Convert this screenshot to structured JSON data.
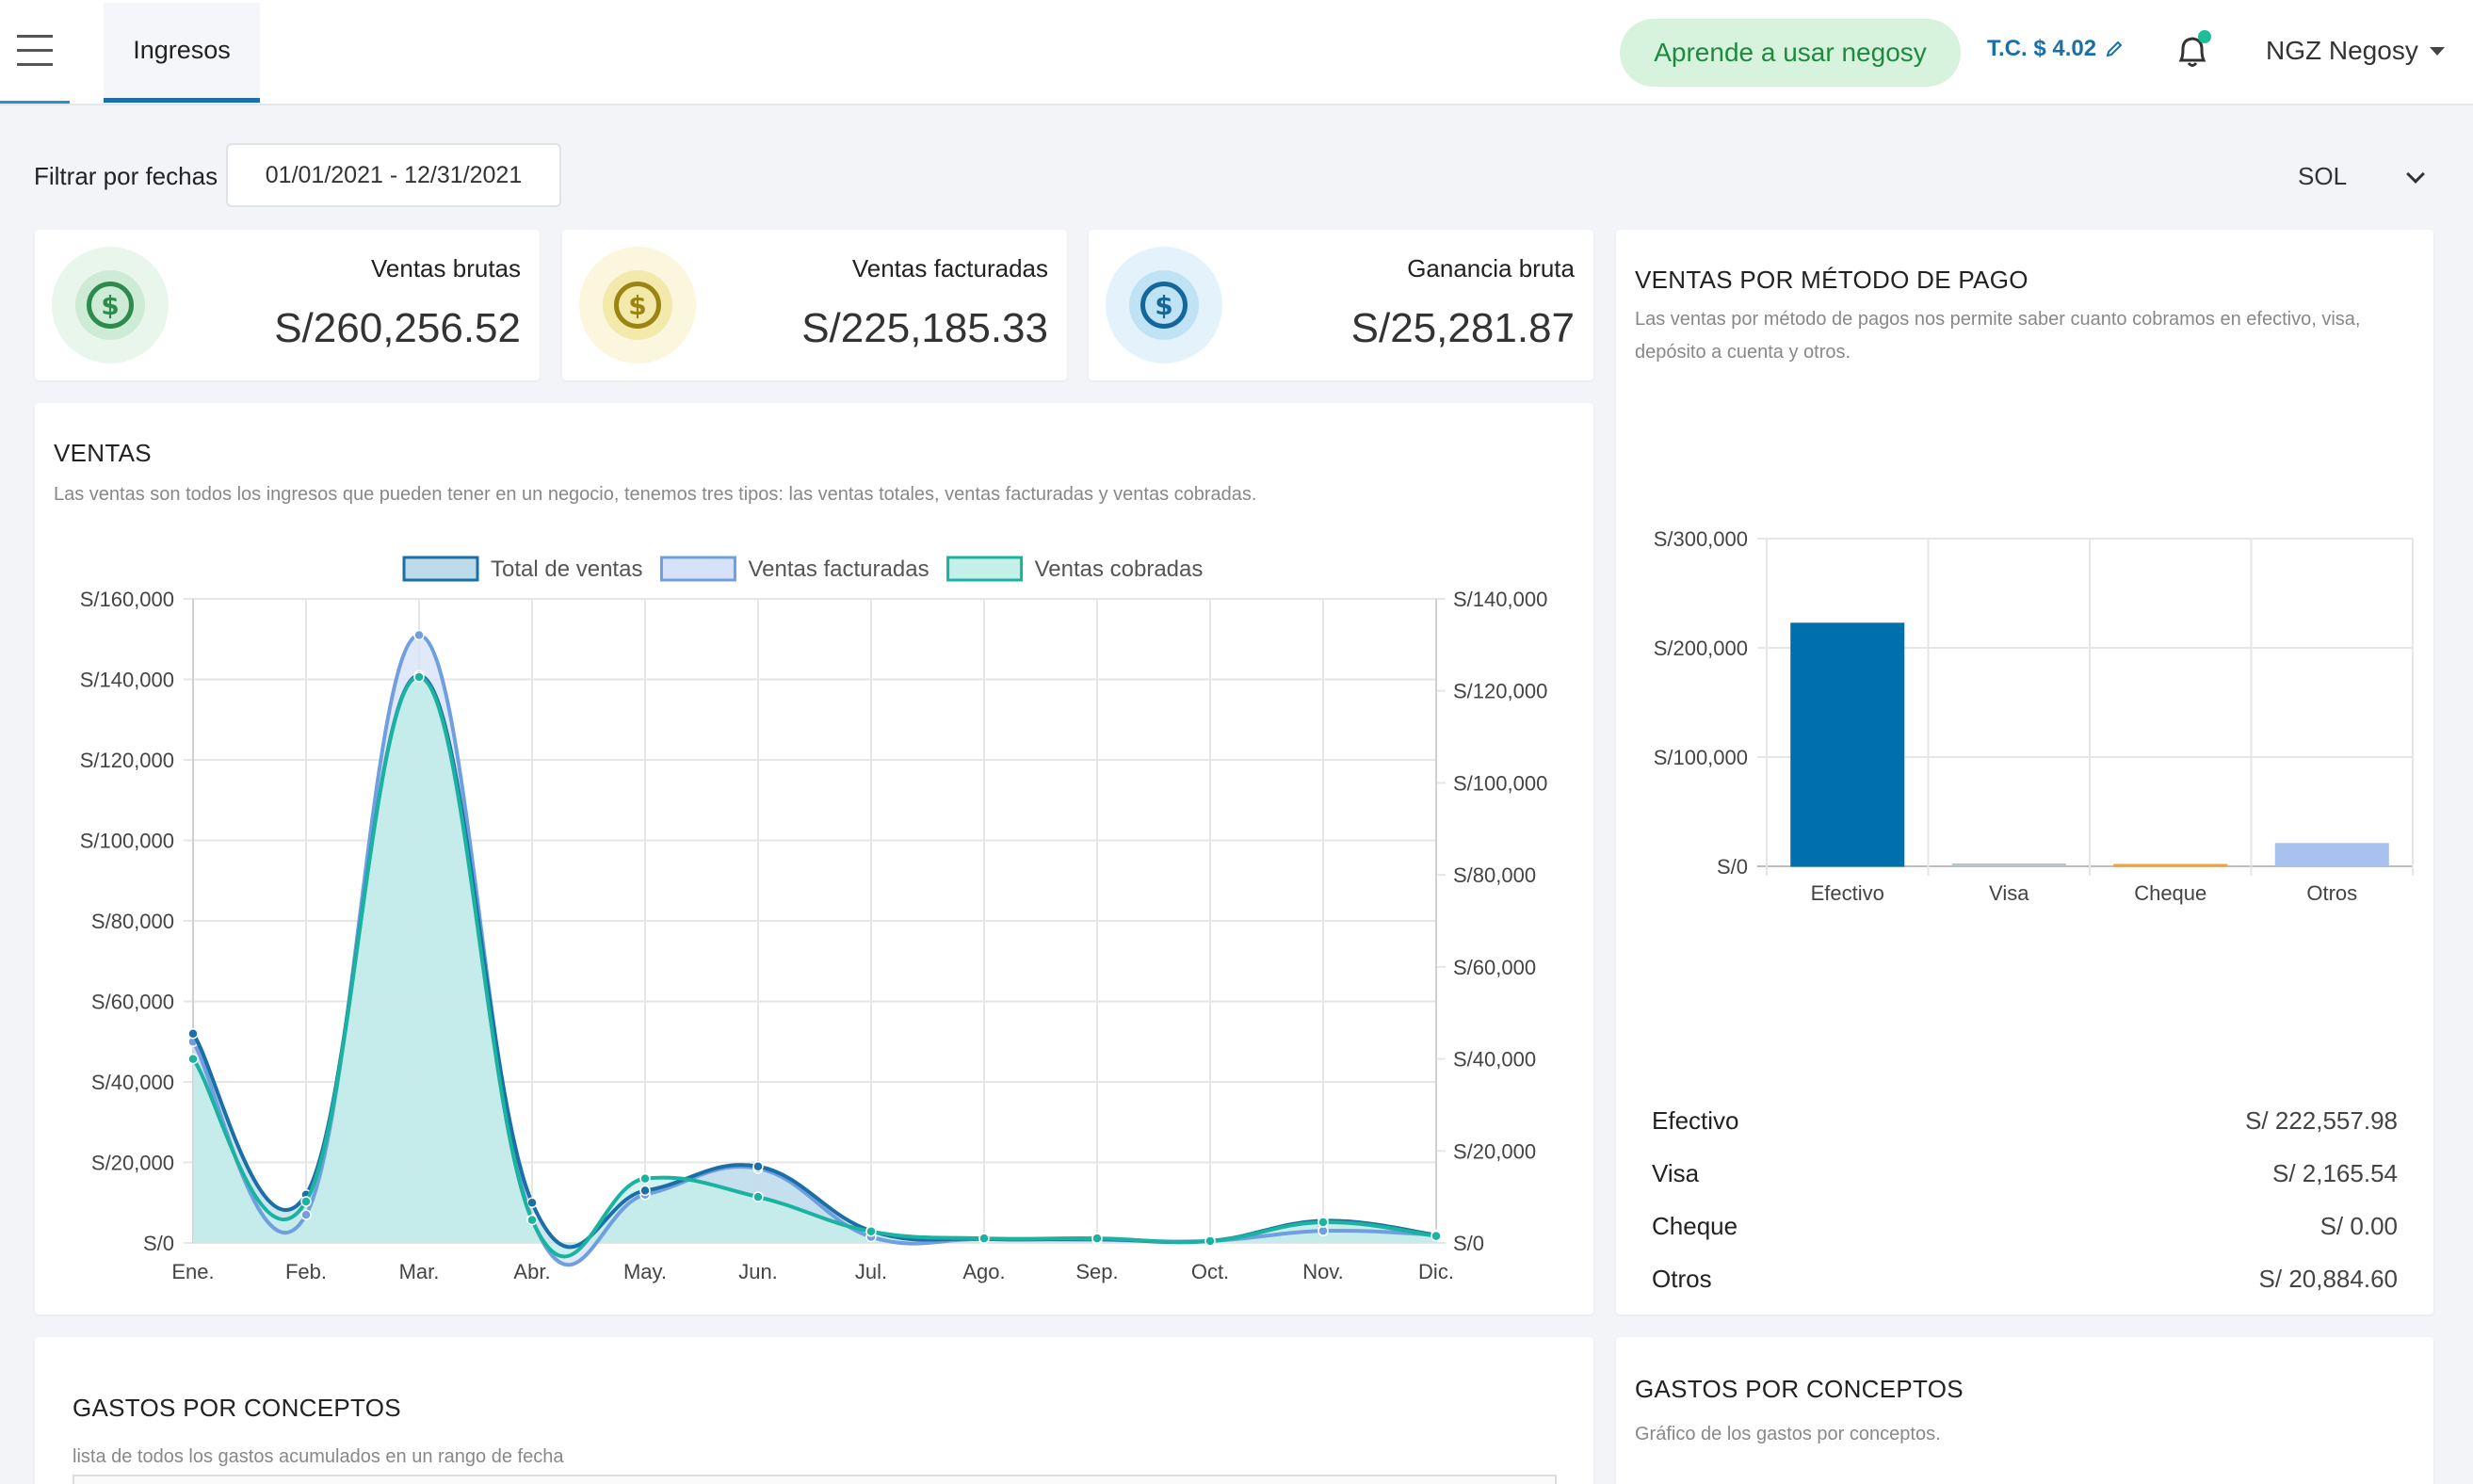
{
  "header": {
    "active_tab": "Ingresos",
    "learn_button": "Aprende a usar negosy",
    "exchange_rate": "T.C. $ 4.02",
    "company": "NGZ Negosy"
  },
  "filter": {
    "label": "Filtrar por fechas",
    "date_range": "01/01/2021 - 12/31/2021",
    "currency": "SOL"
  },
  "kpis": [
    {
      "label": "Ventas brutas",
      "value": "S/260,256.52",
      "color": "#2e8b4e"
    },
    {
      "label": "Ventas facturadas",
      "value": "S/225,185.33",
      "color": "#9a8412"
    },
    {
      "label": "Ganancia bruta",
      "value": "S/25,281.87",
      "color": "#14679b"
    }
  ],
  "ventas": {
    "title": "VENTAS",
    "description": "Las ventas son todos los ingresos que pueden tener en un negocio, tenemos tres tipos: las ventas totales, ventas facturadas y ventas cobradas."
  },
  "payment": {
    "title": "VENTAS POR MÉTODO DE PAGO",
    "description": "Las ventas por método de pagos nos permite saber cuanto cobramos en efectivo, visa, depósito a cuenta y otros.",
    "rows": [
      {
        "label": "Efectivo",
        "value": "S/ 222,557.98"
      },
      {
        "label": "Visa",
        "value": "S/ 2,165.54"
      },
      {
        "label": "Cheque",
        "value": "S/ 0.00"
      },
      {
        "label": "Otros",
        "value": "S/ 20,884.60"
      }
    ]
  },
  "gastos_left": {
    "title": "GASTOS POR CONCEPTOS",
    "description": "lista de todos los gastos acumulados en un rango de fecha"
  },
  "gastos_right": {
    "title": "GASTOS POR CONCEPTOS",
    "description": "Gráfico de los gastos por conceptos."
  },
  "chart_data": [
    {
      "type": "area",
      "categories": [
        "Ene.",
        "Feb.",
        "Mar.",
        "Abr.",
        "May.",
        "Jun.",
        "Jul.",
        "Ago.",
        "Sep.",
        "Oct.",
        "Nov.",
        "Dic."
      ],
      "series": [
        {
          "name": "Total de ventas",
          "axis": "left",
          "color": "#1a6fa9",
          "fill": "#bedbea",
          "values": [
            52000,
            12000,
            141000,
            10000,
            13000,
            19000,
            3000,
            1000,
            1000,
            500,
            5500,
            2000
          ]
        },
        {
          "name": "Ventas facturadas",
          "axis": "left",
          "color": "#6f9fe0",
          "fill": "#d5e2f7",
          "values": [
            50000,
            7000,
            151000,
            6000,
            12000,
            18500,
            1500,
            1000,
            800,
            500,
            3000,
            2000
          ]
        },
        {
          "name": "Ventas cobradas",
          "axis": "right",
          "color": "#1ab3a0",
          "fill": "#c5efe9",
          "values": [
            40000,
            9000,
            123000,
            5000,
            14000,
            10000,
            2500,
            1000,
            1000,
            400,
            4500,
            1500
          ]
        }
      ],
      "ylim_left": [
        0,
        160000
      ],
      "yticks_left": [
        "S/0",
        "S/20,000",
        "S/40,000",
        "S/60,000",
        "S/80,000",
        "S/100,000",
        "S/120,000",
        "S/140,000",
        "S/160,000"
      ],
      "ylim_right": [
        0,
        140000
      ],
      "yticks_right": [
        "S/0",
        "S/20,000",
        "S/40,000",
        "S/60,000",
        "S/80,000",
        "S/100,000",
        "S/120,000",
        "S/140,000"
      ],
      "grid": true,
      "legend": "top-center"
    },
    {
      "type": "bar",
      "categories": [
        "Efectivo",
        "Visa",
        "Cheque",
        "Otros"
      ],
      "values": [
        222557.98,
        2165.54,
        0,
        20884.6
      ],
      "colors": [
        "#0070ad",
        "#b8c4cc",
        "#f2a23b",
        "#a9c1ef"
      ],
      "ylim": [
        0,
        300000
      ],
      "yticks": [
        "S/0",
        "S/100,000",
        "S/200,000",
        "S/300,000"
      ],
      "grid": true
    }
  ]
}
